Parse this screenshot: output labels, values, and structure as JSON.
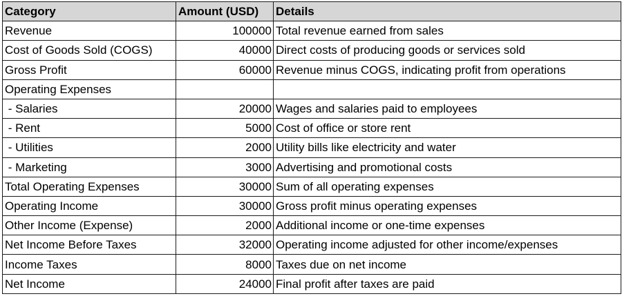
{
  "header": {
    "category": "Category",
    "amount": "Amount (USD)",
    "details": "Details"
  },
  "rows": [
    {
      "category": "Revenue",
      "amount": "100000",
      "details": "Total revenue earned from sales"
    },
    {
      "category": "Cost of Goods Sold (COGS)",
      "amount": "40000",
      "details": "Direct costs of producing goods or services sold"
    },
    {
      "category": "Gross Profit",
      "amount": "60000",
      "details": "Revenue minus COGS, indicating profit from operations"
    },
    {
      "category": "Operating Expenses",
      "amount": "",
      "details": ""
    },
    {
      "category": " - Salaries",
      "amount": "20000",
      "details": "Wages and salaries paid to employees"
    },
    {
      "category": " - Rent",
      "amount": "5000",
      "details": "Cost of office or store rent"
    },
    {
      "category": " - Utilities",
      "amount": "2000",
      "details": "Utility bills like electricity and water"
    },
    {
      "category": " - Marketing",
      "amount": "3000",
      "details": "Advertising and promotional costs"
    },
    {
      "category": "Total Operating Expenses",
      "amount": "30000",
      "details": "Sum of all operating expenses"
    },
    {
      "category": "Operating Income",
      "amount": "30000",
      "details": "Gross profit minus operating expenses"
    },
    {
      "category": "Other Income (Expense)",
      "amount": "2000",
      "details": "Additional income or one-time expenses"
    },
    {
      "category": "Net Income Before Taxes",
      "amount": "32000",
      "details": "Operating income adjusted for other income/expenses"
    },
    {
      "category": "Income Taxes",
      "amount": "8000",
      "details": "Taxes due on net income"
    },
    {
      "category": "Net Income",
      "amount": "24000",
      "details": "Final profit after taxes are paid"
    }
  ]
}
